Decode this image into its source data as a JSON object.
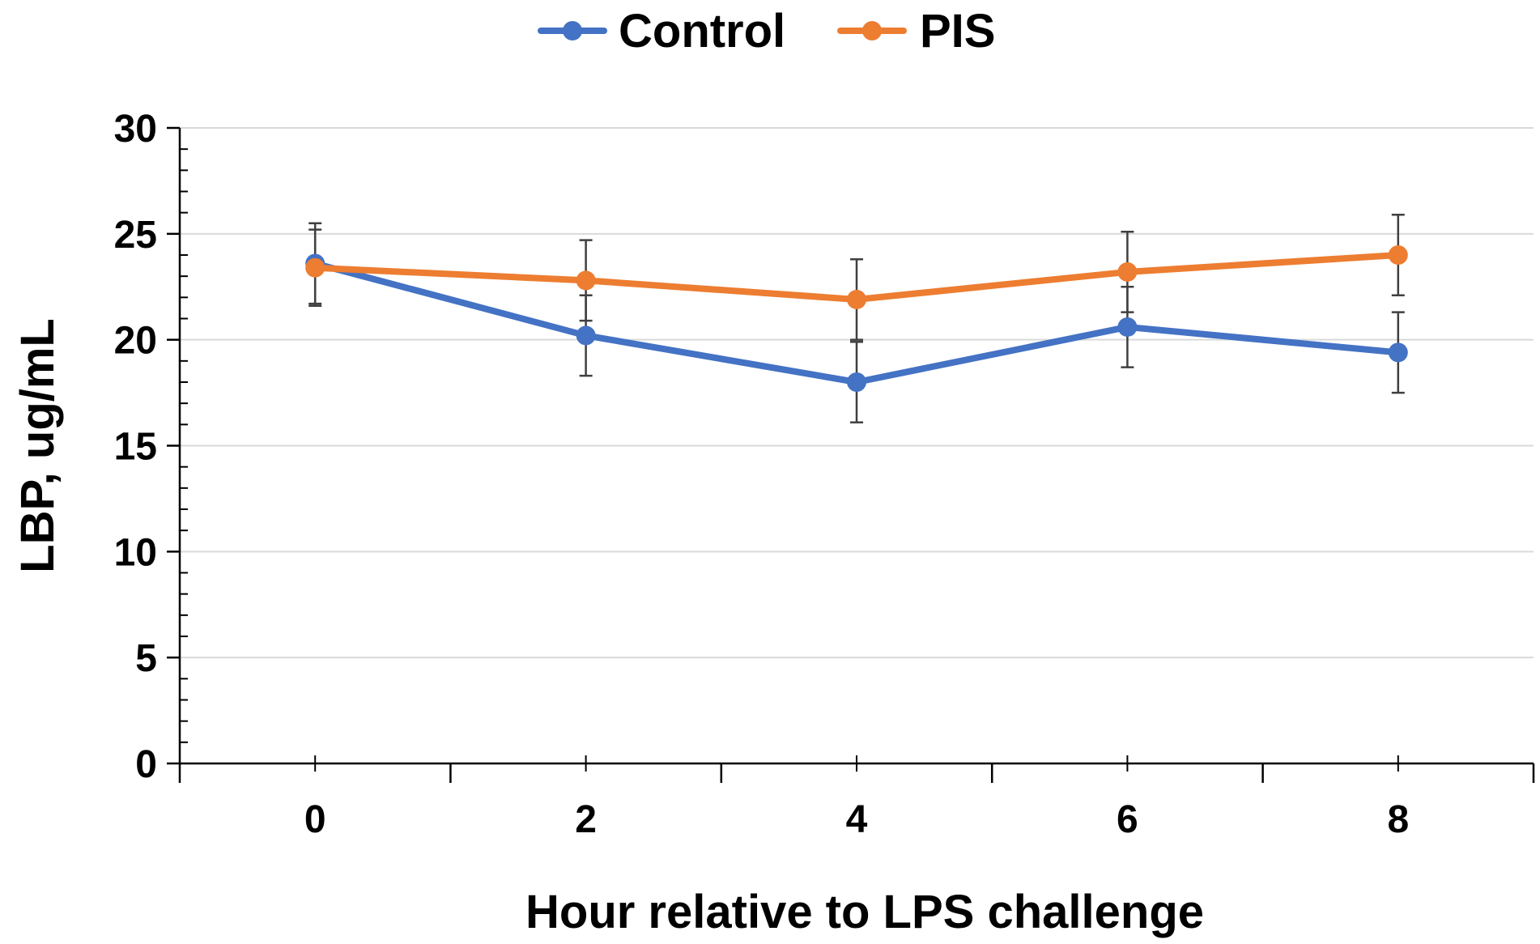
{
  "chart_data": {
    "type": "line",
    "title": "",
    "xlabel": "Hour relative to LPS challenge",
    "ylabel": "LBP, ug/mL",
    "x": [
      0,
      2,
      4,
      6,
      8
    ],
    "x_tick_labels": [
      "0",
      "2",
      "4",
      "6",
      "8"
    ],
    "xlim": [
      -1,
      9
    ],
    "ylim": [
      0,
      30
    ],
    "y_ticks": [
      0,
      5,
      10,
      15,
      20,
      25,
      30
    ],
    "y_tick_labels": [
      "0",
      "5",
      "10",
      "15",
      "20",
      "25",
      "30"
    ],
    "y_minor_step": 1,
    "grid": true,
    "legend_position": "top-center",
    "series": [
      {
        "name": "Control",
        "color": "#4472C4",
        "values": [
          23.6,
          20.2,
          18.0,
          20.6,
          19.4
        ],
        "errors": [
          1.9,
          1.9,
          1.9,
          1.9,
          1.9
        ]
      },
      {
        "name": "PIS",
        "color": "#ED7D31",
        "values": [
          23.4,
          22.8,
          21.9,
          23.2,
          24.0
        ],
        "errors": [
          1.8,
          1.9,
          1.9,
          1.9,
          1.9
        ]
      }
    ]
  }
}
